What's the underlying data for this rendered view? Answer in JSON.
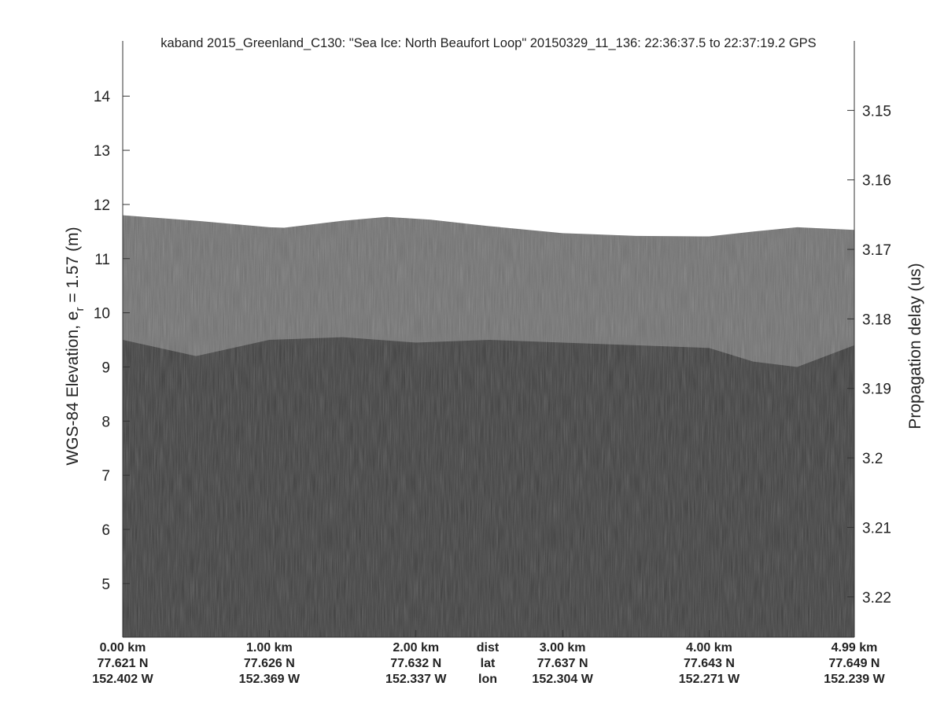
{
  "chart_data": {
    "type": "echogram",
    "title": "kaband 2015_Greenland_C130: \"Sea Ice: North Beaufort Loop\"  20150329_11_136: 22:36:37.5 to 22:37:19.2 GPS",
    "ylabel": [
      "WGS-84 Elevation, e",
      "r",
      " = 1.57 (m)"
    ],
    "y2label": "Propagation delay (us)",
    "xlim": [
      0,
      4.99
    ],
    "xticks": [
      {
        "value": 0,
        "label": "0.00 km"
      },
      {
        "value": 1,
        "label": "1.00 km"
      },
      {
        "value": 2,
        "label": "2.00 km"
      },
      {
        "value": 3,
        "label": "3.00 km"
      },
      {
        "value": 4,
        "label": "4.00 km"
      },
      {
        "value": 4.99,
        "label": "4.99 km"
      }
    ],
    "lat_labels": [
      "77.621 N",
      "77.626 N",
      "77.632 N",
      "77.637 N",
      "77.643 N",
      "77.649 N"
    ],
    "lon_labels": [
      "152.402 W",
      "152.369 W",
      "152.337 W",
      "152.304 W",
      "152.271 W",
      "152.239 W"
    ],
    "row_labels": [
      "dist",
      "lat",
      "lon"
    ],
    "ylim": [
      4.01,
      15.02
    ],
    "yticks": [
      5,
      6,
      7,
      8,
      9,
      10,
      11,
      12,
      13,
      14
    ],
    "y2lim": [
      3.2258,
      3.14
    ],
    "y2ticks": [
      3.15,
      3.16,
      3.17,
      3.18,
      3.19,
      3.2,
      3.21,
      3.22
    ],
    "surface": {
      "x": [
        0,
        0.5,
        1.0,
        1.1,
        1.5,
        1.8,
        2.1,
        2.5,
        3.0,
        3.5,
        4.0,
        4.3,
        4.6,
        4.99
      ],
      "values": [
        11.8,
        11.7,
        11.58,
        11.57,
        11.7,
        11.77,
        11.72,
        11.6,
        11.47,
        11.42,
        11.41,
        11.5,
        11.58,
        11.53
      ]
    },
    "interface": {
      "x": [
        0,
        0.5,
        1.0,
        1.5,
        2.0,
        2.5,
        3.0,
        3.5,
        4.0,
        4.3,
        4.6,
        4.99
      ],
      "values": [
        9.5,
        9.2,
        9.5,
        9.55,
        9.45,
        9.5,
        9.45,
        9.4,
        9.35,
        9.1,
        9.0,
        9.4
      ]
    }
  }
}
